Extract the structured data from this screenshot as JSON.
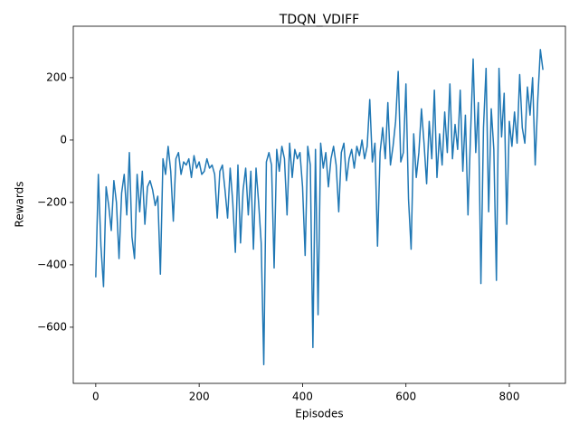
{
  "chart_data": {
    "type": "line",
    "title": "TDQN_VDIFF",
    "xlabel": "Episodes",
    "ylabel": "Rewards",
    "xlim": [
      -43.5,
      908.5
    ],
    "ylim": [
      -780,
      365
    ],
    "xticks": [
      0,
      200,
      400,
      600,
      800
    ],
    "yticks": [
      {
        "value": -600,
        "label": "−600"
      },
      {
        "value": -400,
        "label": "−400"
      },
      {
        "value": -200,
        "label": "−200"
      },
      0,
      200
    ],
    "grid": false,
    "series": [
      {
        "color": "#1f77b4",
        "x": [
          0,
          5,
          10,
          15,
          20,
          25,
          30,
          35,
          40,
          45,
          50,
          55,
          60,
          65,
          70,
          75,
          80,
          85,
          90,
          95,
          100,
          105,
          110,
          115,
          120,
          125,
          130,
          135,
          140,
          145,
          150,
          155,
          160,
          165,
          170,
          175,
          180,
          185,
          190,
          195,
          200,
          205,
          210,
          215,
          220,
          225,
          230,
          235,
          240,
          245,
          250,
          255,
          260,
          265,
          270,
          275,
          280,
          285,
          290,
          295,
          300,
          305,
          310,
          315,
          320,
          325,
          330,
          335,
          340,
          345,
          350,
          355,
          360,
          365,
          370,
          375,
          380,
          385,
          390,
          395,
          400,
          405,
          410,
          415,
          420,
          425,
          430,
          435,
          440,
          445,
          450,
          455,
          460,
          465,
          470,
          475,
          480,
          485,
          490,
          495,
          500,
          505,
          510,
          515,
          520,
          525,
          530,
          535,
          540,
          545,
          550,
          555,
          560,
          565,
          570,
          575,
          580,
          585,
          590,
          595,
          600,
          605,
          610,
          615,
          620,
          625,
          630,
          635,
          640,
          645,
          650,
          655,
          660,
          665,
          670,
          675,
          680,
          685,
          690,
          695,
          700,
          705,
          710,
          715,
          720,
          725,
          730,
          735,
          740,
          745,
          750,
          755,
          760,
          765,
          770,
          775,
          780,
          785,
          790,
          795,
          800,
          805,
          810,
          815,
          820,
          825,
          830,
          835,
          840,
          845,
          850,
          855,
          860,
          865
        ],
        "values": [
          -440,
          -110,
          -340,
          -470,
          -150,
          -210,
          -290,
          -130,
          -200,
          -380,
          -170,
          -110,
          -240,
          -40,
          -310,
          -380,
          -110,
          -230,
          -100,
          -270,
          -150,
          -130,
          -160,
          -210,
          -180,
          -430,
          -60,
          -110,
          -20,
          -100,
          -260,
          -60,
          -40,
          -110,
          -70,
          -80,
          -60,
          -120,
          -50,
          -90,
          -70,
          -110,
          -100,
          -60,
          -90,
          -80,
          -110,
          -250,
          -100,
          -80,
          -160,
          -250,
          -90,
          -200,
          -360,
          -80,
          -330,
          -160,
          -90,
          -240,
          -100,
          -350,
          -90,
          -200,
          -330,
          -720,
          -70,
          -40,
          -80,
          -410,
          -30,
          -100,
          -20,
          -60,
          -240,
          -10,
          -120,
          -30,
          -60,
          -40,
          -150,
          -370,
          -20,
          -80,
          -665,
          -30,
          -560,
          -10,
          -90,
          -40,
          -150,
          -60,
          -20,
          -80,
          -230,
          -40,
          -10,
          -130,
          -60,
          -30,
          -90,
          -20,
          -50,
          0,
          -60,
          -20,
          130,
          -70,
          -10,
          -340,
          -40,
          40,
          -60,
          120,
          -80,
          -20,
          60,
          220,
          -70,
          -40,
          180,
          -190,
          -350,
          20,
          -120,
          -40,
          100,
          -10,
          -140,
          60,
          -60,
          160,
          -120,
          20,
          -80,
          90,
          -40,
          180,
          -60,
          50,
          -30,
          160,
          -100,
          80,
          -240,
          20,
          260,
          -40,
          120,
          -460,
          40,
          230,
          -230,
          100,
          -30,
          -450,
          230,
          10,
          150,
          -270,
          60,
          -20,
          90,
          -10,
          210,
          40,
          -10,
          170,
          80,
          200,
          -80,
          130,
          290,
          225
        ]
      }
    ]
  }
}
